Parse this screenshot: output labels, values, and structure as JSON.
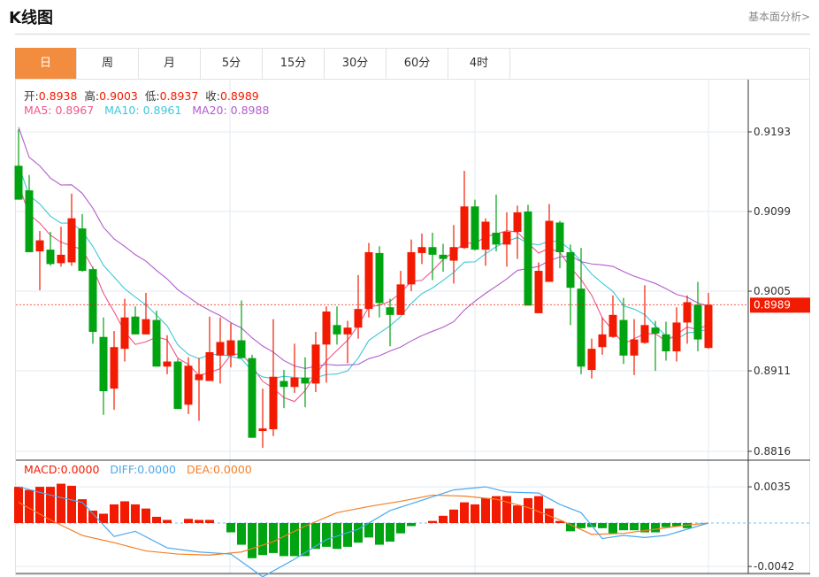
{
  "header": {
    "title": "K线图",
    "more_link": "基本面分析>"
  },
  "tabs": [
    {
      "label": "日",
      "active": true
    },
    {
      "label": "周"
    },
    {
      "label": "月"
    },
    {
      "label": "5分"
    },
    {
      "label": "15分"
    },
    {
      "label": "30分"
    },
    {
      "label": "60分"
    },
    {
      "label": "4时"
    }
  ],
  "ohlc_legend": {
    "open_label": "开:",
    "open": "0.8938",
    "high_label": "高:",
    "high": "0.9003",
    "low_label": "低:",
    "low": "0.8937",
    "close_label": "收:",
    "close": "0.8989"
  },
  "ma_legend": {
    "ma5": "MA5: 0.8967",
    "ma10": "MA10: 0.8961",
    "ma20": "MA20: 0.8988"
  },
  "macd_legend": {
    "macd": "MACD:0.0000",
    "diff": "DIFF:0.0000",
    "dea": "DEA:0.0000"
  },
  "colors": {
    "up": "#f21a00",
    "down": "#00a310",
    "ma5": "#f0558a",
    "ma10": "#3cc8da",
    "ma20": "#b25ccc",
    "diff": "#4aa8ee",
    "dea": "#f57f27",
    "accent": "#f28c3e"
  },
  "chart_data": [
    {
      "type": "candlestick",
      "title": "K线图",
      "yticks": [
        "0.9193",
        "0.9099",
        "0.9005",
        "0.8911",
        "0.8816"
      ],
      "ylim": [
        0.8816,
        0.9193
      ],
      "current_price": "0.8989",
      "ohlc": [
        [
          0.9153,
          0.9196,
          0.9113,
          0.9113
        ],
        [
          0.9124,
          0.9142,
          0.9051,
          0.9051
        ],
        [
          0.9052,
          0.9076,
          0.9006,
          0.9065
        ],
        [
          0.9054,
          0.9075,
          0.9035,
          0.9037
        ],
        [
          0.9038,
          0.9081,
          0.9034,
          0.9048
        ],
        [
          0.9039,
          0.912,
          0.9035,
          0.9091
        ],
        [
          0.9079,
          0.9096,
          0.9028,
          0.9029
        ],
        [
          0.9031,
          0.9034,
          0.8943,
          0.8957
        ],
        [
          0.8951,
          0.8974,
          0.8859,
          0.8887
        ],
        [
          0.889,
          0.8958,
          0.8865,
          0.8939
        ],
        [
          0.8937,
          0.8996,
          0.8922,
          0.8974
        ],
        [
          0.8975,
          0.8987,
          0.8954,
          0.8954
        ],
        [
          0.8954,
          0.9003,
          0.8954,
          0.8972
        ],
        [
          0.8971,
          0.8982,
          0.8916,
          0.8916
        ],
        [
          0.8916,
          0.8953,
          0.8907,
          0.8922
        ],
        [
          0.8922,
          0.8925,
          0.8866,
          0.8866
        ],
        [
          0.8871,
          0.8927,
          0.886,
          0.8917
        ],
        [
          0.89,
          0.8926,
          0.8852,
          0.8907
        ],
        [
          0.8899,
          0.8975,
          0.8899,
          0.8933
        ],
        [
          0.8929,
          0.8974,
          0.8896,
          0.8945
        ],
        [
          0.8929,
          0.8967,
          0.8915,
          0.8947
        ],
        [
          0.8947,
          0.8994,
          0.8926,
          0.8926
        ],
        [
          0.8926,
          0.893,
          0.8832,
          0.8832
        ],
        [
          0.884,
          0.889,
          0.882,
          0.8843
        ],
        [
          0.8842,
          0.8972,
          0.8834,
          0.8904
        ],
        [
          0.8899,
          0.8912,
          0.8867,
          0.8892
        ],
        [
          0.8892,
          0.8943,
          0.8885,
          0.8903
        ],
        [
          0.8903,
          0.8927,
          0.8868,
          0.8896
        ],
        [
          0.8896,
          0.8957,
          0.8886,
          0.8942
        ],
        [
          0.8942,
          0.8987,
          0.8897,
          0.8981
        ],
        [
          0.8965,
          0.8987,
          0.8942,
          0.8954
        ],
        [
          0.8954,
          0.897,
          0.892,
          0.8962
        ],
        [
          0.8962,
          0.9024,
          0.8949,
          0.8984
        ],
        [
          0.8984,
          0.9062,
          0.8974,
          0.9051
        ],
        [
          0.905,
          0.9058,
          0.8974,
          0.8991
        ],
        [
          0.8986,
          0.8996,
          0.894,
          0.8977
        ],
        [
          0.8977,
          0.9029,
          0.8977,
          0.9013
        ],
        [
          0.9013,
          0.9066,
          0.9005,
          0.9051
        ],
        [
          0.905,
          0.9073,
          0.9037,
          0.9057
        ],
        [
          0.9057,
          0.9074,
          0.9018,
          0.9048
        ],
        [
          0.9048,
          0.9061,
          0.9028,
          0.9043
        ],
        [
          0.9041,
          0.9083,
          0.9014,
          0.9057
        ],
        [
          0.9056,
          0.9147,
          0.9055,
          0.9105
        ],
        [
          0.9105,
          0.9113,
          0.9053,
          0.9054
        ],
        [
          0.9054,
          0.9091,
          0.9035,
          0.9087
        ],
        [
          0.9074,
          0.9119,
          0.9052,
          0.906
        ],
        [
          0.906,
          0.9098,
          0.9034,
          0.9075
        ],
        [
          0.9075,
          0.9106,
          0.9043,
          0.9098
        ],
        [
          0.9099,
          0.9107,
          0.8988,
          0.8988
        ],
        [
          0.8979,
          0.9039,
          0.8979,
          0.9029
        ],
        [
          0.9016,
          0.9108,
          0.9016,
          0.9088
        ],
        [
          0.9086,
          0.9088,
          0.9032,
          0.9051
        ],
        [
          0.9051,
          0.906,
          0.8965,
          0.9009
        ],
        [
          0.9008,
          0.9056,
          0.8907,
          0.8916
        ],
        [
          0.8912,
          0.8949,
          0.8902,
          0.8937
        ],
        [
          0.8939,
          0.8974,
          0.893,
          0.8954
        ],
        [
          0.8951,
          0.9,
          0.895,
          0.8977
        ],
        [
          0.8971,
          0.8997,
          0.8919,
          0.8929
        ],
        [
          0.8929,
          0.8972,
          0.8906,
          0.8948
        ],
        [
          0.8944,
          0.9012,
          0.8943,
          0.8965
        ],
        [
          0.8962,
          0.897,
          0.8911,
          0.8955
        ],
        [
          0.8954,
          0.8969,
          0.8923,
          0.8934
        ],
        [
          0.8934,
          0.8986,
          0.8922,
          0.8968
        ],
        [
          0.8968,
          0.9,
          0.8943,
          0.8992
        ],
        [
          0.8989,
          0.9016,
          0.8934,
          0.8948
        ],
        [
          0.8938,
          0.9003,
          0.8937,
          0.8989
        ]
      ],
      "ma_periods": [
        5,
        10,
        20
      ]
    },
    {
      "type": "bar",
      "title": "MACD",
      "yticks": [
        "0.0035",
        "-0.0042"
      ],
      "ylim": [
        -0.0042,
        0.0035
      ],
      "macd": [
        0.0035,
        0.0032,
        0.0035,
        0.0035,
        0.0038,
        0.0036,
        0.0023,
        0.0012,
        0.0009,
        0.0018,
        0.0021,
        0.0018,
        0.0014,
        0.0006,
        0.0003,
        0,
        0.0004,
        0.0003,
        0.0003,
        0,
        -0.0009,
        -0.0021,
        -0.0034,
        -0.0031,
        -0.0029,
        -0.0032,
        -0.0032,
        -0.0032,
        -0.0025,
        -0.0023,
        -0.0025,
        -0.0023,
        -0.0019,
        -0.0014,
        -0.0021,
        -0.0018,
        -0.001,
        -0.0003,
        0,
        0.0002,
        0.0007,
        0.0013,
        0.002,
        0.0018,
        0.0024,
        0.0026,
        0.0026,
        0.0017,
        0.0024,
        0.0026,
        0.0014,
        0.0002,
        -0.0008,
        -0.0005,
        -0.0004,
        -0.0005,
        -0.001,
        -0.0007,
        -0.0007,
        -0.0009,
        -0.0009,
        -0.0004,
        -0.0003,
        -0.0005,
        0,
        0
      ],
      "diff": [
        [
          0,
          0.0035
        ],
        [
          3,
          0.0027
        ],
        [
          6,
          0.002
        ],
        [
          9,
          -0.0013
        ],
        [
          11,
          -0.0008
        ],
        [
          14,
          -0.0024
        ],
        [
          17,
          -0.0028
        ],
        [
          20,
          -0.003
        ],
        [
          23,
          -0.0052
        ],
        [
          26,
          -0.0035
        ],
        [
          29,
          -0.0016
        ],
        [
          32,
          -0.0006
        ],
        [
          35,
          0.0012
        ],
        [
          38,
          0.0022
        ],
        [
          41,
          0.0032
        ],
        [
          44,
          0.0035
        ],
        [
          46,
          0.003
        ],
        [
          49,
          0.0029
        ],
        [
          51,
          0.0018
        ],
        [
          53,
          0.001
        ],
        [
          55,
          -0.0015
        ],
        [
          57,
          -0.0012
        ],
        [
          59,
          -0.0014
        ],
        [
          61,
          -0.0012
        ],
        [
          63,
          -0.0006
        ],
        [
          65,
          0.0
        ]
      ],
      "dea": [
        [
          0,
          0.002
        ],
        [
          3,
          0.0003
        ],
        [
          6,
          -0.0012
        ],
        [
          9,
          -0.0019
        ],
        [
          12,
          -0.0027
        ],
        [
          15,
          -0.003
        ],
        [
          18,
          -0.0031
        ],
        [
          21,
          -0.0028
        ],
        [
          24,
          -0.0018
        ],
        [
          27,
          -0.0003
        ],
        [
          30,
          0.001
        ],
        [
          33,
          0.0016
        ],
        [
          36,
          0.0021
        ],
        [
          39,
          0.0027
        ],
        [
          42,
          0.0026
        ],
        [
          45,
          0.0023
        ],
        [
          48,
          0.0015
        ],
        [
          51,
          0.0003
        ],
        [
          54,
          -0.0011
        ],
        [
          57,
          -0.001
        ],
        [
          60,
          -0.0006
        ],
        [
          63,
          -0.0002
        ],
        [
          65,
          0.0
        ]
      ]
    }
  ]
}
